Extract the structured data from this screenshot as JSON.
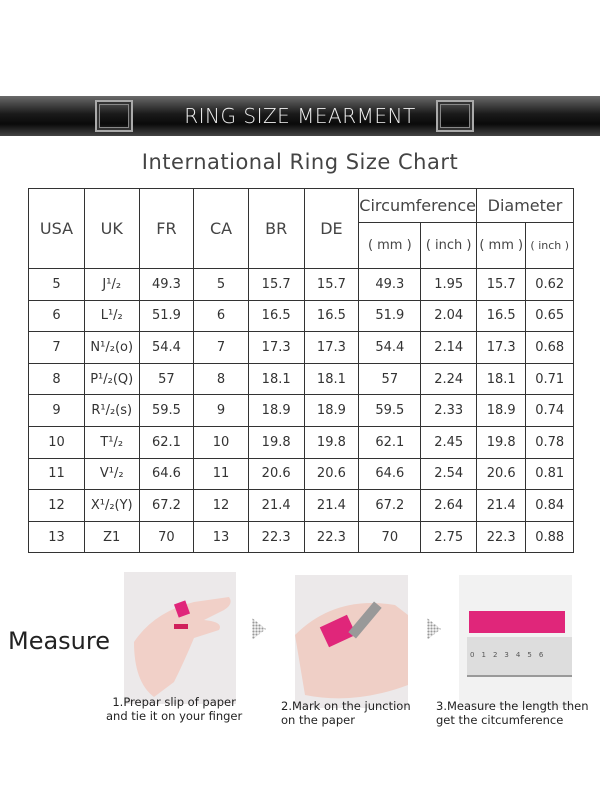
{
  "banner": {
    "title": "RING SIZE MEARMENT"
  },
  "chart_title": "International Ring Size Chart",
  "table": {
    "headers": [
      "USA",
      "UK",
      "FR",
      "CA",
      "BR",
      "DE"
    ],
    "group_headers": [
      "Circumference",
      "Diameter"
    ],
    "sub_headers": [
      "( mm )",
      "( inch )",
      "( mm )",
      "( inch )"
    ],
    "rows": [
      [
        "5",
        "J¹/₂",
        "49.3",
        "5",
        "15.7",
        "15.7",
        "49.3",
        "1.95",
        "15.7",
        "0.62"
      ],
      [
        "6",
        "L¹/₂",
        "51.9",
        "6",
        "16.5",
        "16.5",
        "51.9",
        "2.04",
        "16.5",
        "0.65"
      ],
      [
        "7",
        "N¹/₂(o)",
        "54.4",
        "7",
        "17.3",
        "17.3",
        "54.4",
        "2.14",
        "17.3",
        "0.68"
      ],
      [
        "8",
        "P¹/₂(Q)",
        "57",
        "8",
        "18.1",
        "18.1",
        "57",
        "2.24",
        "18.1",
        "0.71"
      ],
      [
        "9",
        "R¹/₂(s)",
        "59.5",
        "9",
        "18.9",
        "18.9",
        "59.5",
        "2.33",
        "18.9",
        "0.74"
      ],
      [
        "10",
        "T¹/₂",
        "62.1",
        "10",
        "19.8",
        "19.8",
        "62.1",
        "2.45",
        "19.8",
        "0.78"
      ],
      [
        "11",
        "V¹/₂",
        "64.6",
        "11",
        "20.6",
        "20.6",
        "64.6",
        "2.54",
        "20.6",
        "0.81"
      ],
      [
        "12",
        "X¹/₂(Y)",
        "67.2",
        "12",
        "21.4",
        "21.4",
        "67.2",
        "2.64",
        "21.4",
        "0.84"
      ],
      [
        "13",
        "Z1",
        "70",
        "13",
        "22.3",
        "22.3",
        "70",
        "2.75",
        "22.3",
        "0.88"
      ]
    ]
  },
  "measure": {
    "label": "Measure",
    "steps": [
      {
        "line1": "1.Prepar slip of paper",
        "line2": "and tie it on your finger"
      },
      {
        "line1": "2.Mark on the junction",
        "line2": "on the paper"
      },
      {
        "line1": "3.Measure the length then",
        "line2": "get the citcumference"
      }
    ],
    "ruler_ticks": [
      "0",
      "1",
      "2",
      "3",
      "4",
      "5",
      "6"
    ]
  },
  "colors": {
    "accent": "#e0267a"
  }
}
